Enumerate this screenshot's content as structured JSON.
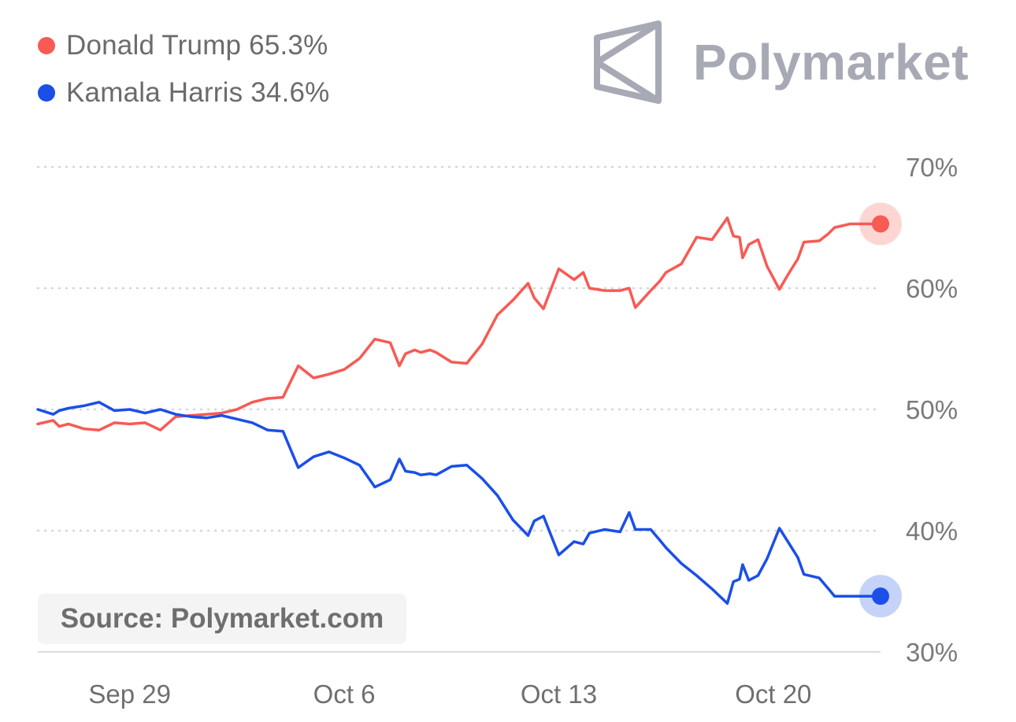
{
  "legend": [
    {
      "label": "Donald Trump 65.3%",
      "color": "#f85a54"
    },
    {
      "label": "Kamala Harris 34.6%",
      "color": "#1b4fe8"
    }
  ],
  "brand": {
    "name": "Polymarket",
    "icon": "polymarket-logo-icon"
  },
  "source": "Source: Polymarket.com",
  "chart_data": {
    "type": "line",
    "title": "",
    "xlabel": "",
    "ylabel": "",
    "ylim": [
      30,
      70
    ],
    "yticks": [
      "30%",
      "40%",
      "50%",
      "60%",
      "70%"
    ],
    "xticks": [
      "Sep 29",
      "Oct 6",
      "Oct 13",
      "Oct 20"
    ],
    "grid": true,
    "legend_position": "top-left",
    "x_unit": "days since Sep 26",
    "series": [
      {
        "name": "Donald Trump",
        "color": "#f85a54",
        "x": [
          0,
          0.5,
          0.7,
          1,
          1.5,
          2,
          2.5,
          3,
          3.5,
          4,
          4.5,
          5,
          5.5,
          6,
          6.5,
          7,
          7.5,
          8,
          8.5,
          9,
          9.5,
          10,
          10.5,
          11,
          11.5,
          11.8,
          12,
          12.3,
          12.5,
          12.8,
          13,
          13.5,
          14,
          14.5,
          15,
          15.5,
          16,
          16.2,
          16.5,
          17,
          17.5,
          17.8,
          18,
          18.5,
          19,
          19.3,
          19.5,
          20,
          20.3,
          20.5,
          21,
          21.5,
          22,
          22.5,
          22.7,
          22.9,
          23,
          23.2,
          23.5,
          23.8,
          24.2,
          24.5,
          24.8,
          25,
          25.5,
          25.8,
          26,
          26.5,
          26.9,
          27.2,
          27.5
        ],
        "values": [
          48.8,
          49.1,
          48.6,
          48.8,
          48.4,
          48.3,
          48.9,
          48.8,
          48.9,
          48.3,
          49.4,
          49.5,
          49.6,
          49.7,
          50.0,
          50.6,
          50.9,
          51.0,
          53.6,
          52.6,
          52.9,
          53.3,
          54.2,
          55.8,
          55.5,
          53.6,
          54.6,
          54.9,
          54.7,
          54.9,
          54.7,
          53.9,
          53.8,
          55.4,
          57.8,
          59.0,
          60.4,
          59.2,
          58.3,
          61.6,
          60.7,
          61.3,
          60.0,
          59.8,
          59.8,
          60.0,
          58.4,
          59.8,
          60.6,
          61.3,
          62.0,
          64.2,
          64.0,
          65.8,
          64.3,
          64.2,
          62.5,
          63.6,
          64.0,
          61.8,
          59.9,
          61.2,
          62.4,
          63.8,
          63.9,
          64.5,
          65.0,
          65.3,
          65.3,
          65.3,
          65.3
        ]
      },
      {
        "name": "Kamala Harris",
        "color": "#1b4fe8",
        "x": [
          0,
          0.5,
          0.7,
          1,
          1.5,
          2,
          2.5,
          3,
          3.5,
          4,
          4.5,
          5,
          5.5,
          6,
          6.5,
          7,
          7.5,
          8,
          8.5,
          9,
          9.5,
          10,
          10.5,
          11,
          11.5,
          11.8,
          12,
          12.3,
          12.5,
          12.8,
          13,
          13.5,
          14,
          14.5,
          15,
          15.5,
          16,
          16.2,
          16.5,
          17,
          17.5,
          17.8,
          18,
          18.5,
          19,
          19.3,
          19.5,
          20,
          20.3,
          20.5,
          21,
          21.5,
          22,
          22.5,
          22.7,
          22.9,
          23,
          23.2,
          23.5,
          23.8,
          24.2,
          24.5,
          24.8,
          25,
          25.5,
          25.8,
          26,
          26.5,
          26.9,
          27.2,
          27.5
        ],
        "values": [
          50.0,
          49.6,
          49.9,
          50.1,
          50.3,
          50.6,
          49.9,
          50.0,
          49.7,
          50.0,
          49.6,
          49.4,
          49.3,
          49.5,
          49.2,
          48.9,
          48.3,
          48.2,
          45.2,
          46.1,
          46.5,
          46.0,
          45.4,
          43.6,
          44.2,
          45.9,
          44.9,
          44.8,
          44.6,
          44.7,
          44.6,
          45.3,
          45.4,
          44.3,
          42.9,
          40.9,
          39.6,
          40.8,
          41.2,
          38.0,
          39.1,
          38.9,
          39.8,
          40.1,
          39.9,
          41.5,
          40.1,
          40.1,
          39.2,
          38.6,
          37.3,
          36.3,
          35.2,
          34.0,
          35.8,
          36.0,
          37.2,
          35.9,
          36.3,
          37.7,
          40.2,
          39.0,
          37.8,
          36.4,
          36.1,
          35.2,
          34.6,
          34.6,
          34.6,
          34.6,
          34.6
        ]
      }
    ]
  }
}
